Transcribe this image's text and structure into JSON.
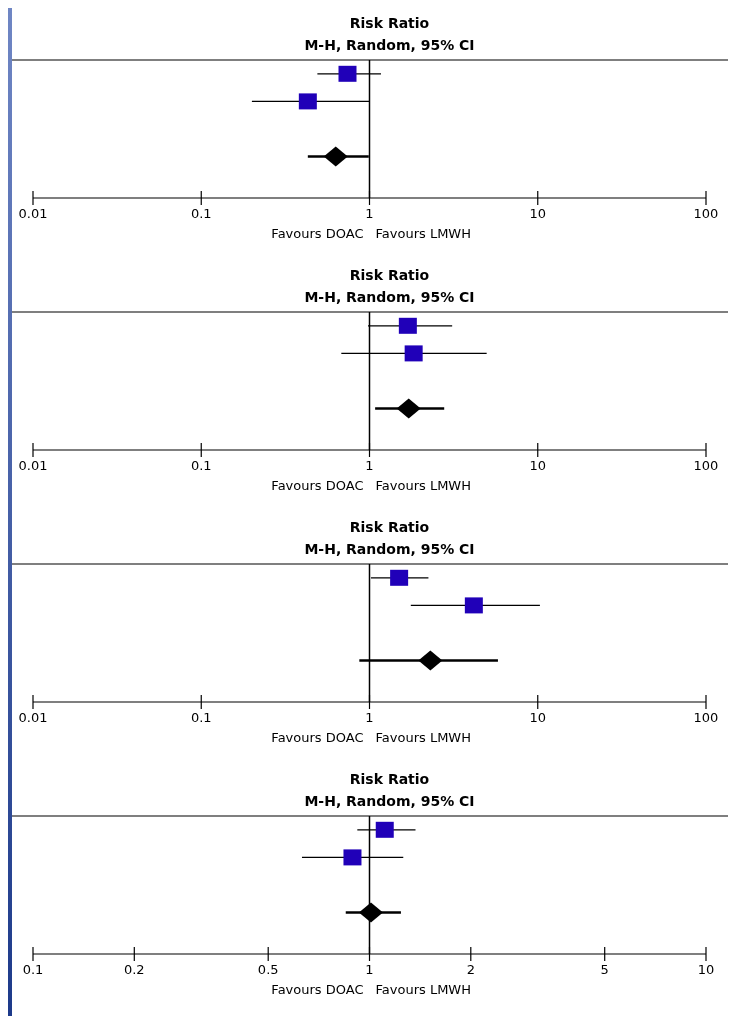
{
  "chart_data": [
    {
      "type": "scatter",
      "title": "Risk Ratio",
      "subtitle": "M-H, Random, 95% CI",
      "orientation": "horizontal",
      "log": "x",
      "xlim": [
        0.01,
        100
      ],
      "xticks": [
        0.01,
        0.1,
        1,
        10,
        100
      ],
      "categories": [
        null,
        null,
        null,
        null,
        null
      ],
      "series": [
        {
          "type": "scatter",
          "marker": "square",
          "color": "#2000b8",
          "values": [
            0.74,
            0.43,
            null,
            null,
            null
          ],
          "errors": [
            [
              0.49,
              1.17
            ],
            [
              0.2,
              1.0
            ],
            null,
            null,
            null
          ]
        },
        {
          "type": "scatter",
          "marker": "diamond",
          "color": "#000000",
          "values": [
            null,
            null,
            null,
            0.63,
            null
          ],
          "errors": [
            null,
            null,
            null,
            [
              0.43,
              0.99
            ],
            null
          ]
        }
      ],
      "ref_lines": [
        {
          "axis": "x",
          "value": 1
        }
      ],
      "annotations": [
        "Favours DOAC",
        "Favours LMWH"
      ]
    },
    {
      "type": "scatter",
      "title": "Risk Ratio",
      "subtitle": "M-H, Random, 95% CI",
      "orientation": "horizontal",
      "log": "x",
      "xlim": [
        0.01,
        100
      ],
      "xticks": [
        0.01,
        0.1,
        1,
        10,
        100
      ],
      "categories": [
        null,
        null,
        null,
        null,
        null
      ],
      "series": [
        {
          "type": "scatter",
          "marker": "square",
          "color": "#2000b8",
          "values": [
            1.69,
            1.83,
            null,
            null,
            null
          ],
          "errors": [
            [
              0.98,
              3.1
            ],
            [
              0.68,
              4.97
            ],
            null,
            null,
            null
          ]
        },
        {
          "type": "scatter",
          "marker": "diamond",
          "color": "#000000",
          "values": [
            null,
            null,
            null,
            1.71,
            null
          ],
          "errors": [
            null,
            null,
            null,
            [
              1.08,
              2.78
            ],
            null
          ]
        }
      ],
      "ref_lines": [
        {
          "axis": "x",
          "value": 1
        }
      ],
      "annotations": [
        "Favours DOAC",
        "Favours LMWH"
      ]
    },
    {
      "type": "scatter",
      "title": "Risk Ratio",
      "subtitle": "M-H, Random, 95% CI",
      "orientation": "horizontal",
      "log": "x",
      "xlim": [
        0.01,
        100
      ],
      "xticks": [
        0.01,
        0.1,
        1,
        10,
        100
      ],
      "categories": [
        null,
        null,
        null,
        null,
        null
      ],
      "series": [
        {
          "type": "scatter",
          "marker": "square",
          "color": "#2000b8",
          "values": [
            1.5,
            4.17,
            null,
            null,
            null
          ],
          "errors": [
            [
              1.02,
              2.24
            ],
            [
              1.76,
              10.3
            ],
            null,
            null,
            null
          ]
        },
        {
          "type": "scatter",
          "marker": "diamond",
          "color": "#000000",
          "values": [
            null,
            null,
            null,
            2.3,
            null
          ],
          "errors": [
            null,
            null,
            null,
            [
              0.87,
              5.8
            ],
            null
          ]
        }
      ],
      "ref_lines": [
        {
          "axis": "x",
          "value": 1
        }
      ],
      "annotations": [
        "Favours DOAC",
        "Favours LMWH"
      ]
    },
    {
      "type": "scatter",
      "title": "Risk Ratio",
      "subtitle": "M-H, Random, 95% CI",
      "orientation": "horizontal",
      "log": "x",
      "xlim": [
        0.1,
        10
      ],
      "xticks": [
        0.1,
        0.2,
        0.5,
        1,
        2,
        5,
        10
      ],
      "categories": [
        null,
        null,
        null,
        null,
        null
      ],
      "series": [
        {
          "type": "scatter",
          "marker": "square",
          "color": "#2000b8",
          "values": [
            1.11,
            0.89,
            null,
            null,
            null
          ],
          "errors": [
            [
              0.92,
              1.37
            ],
            [
              0.63,
              1.26
            ],
            null,
            null,
            null
          ]
        },
        {
          "type": "scatter",
          "marker": "diamond",
          "color": "#000000",
          "values": [
            null,
            null,
            null,
            1.01,
            null
          ],
          "errors": [
            null,
            null,
            null,
            [
              0.85,
              1.24
            ],
            null
          ]
        }
      ],
      "ref_lines": [
        {
          "axis": "x",
          "value": 1
        }
      ],
      "annotations": [
        "Favours DOAC",
        "Favours LMWH"
      ]
    }
  ]
}
